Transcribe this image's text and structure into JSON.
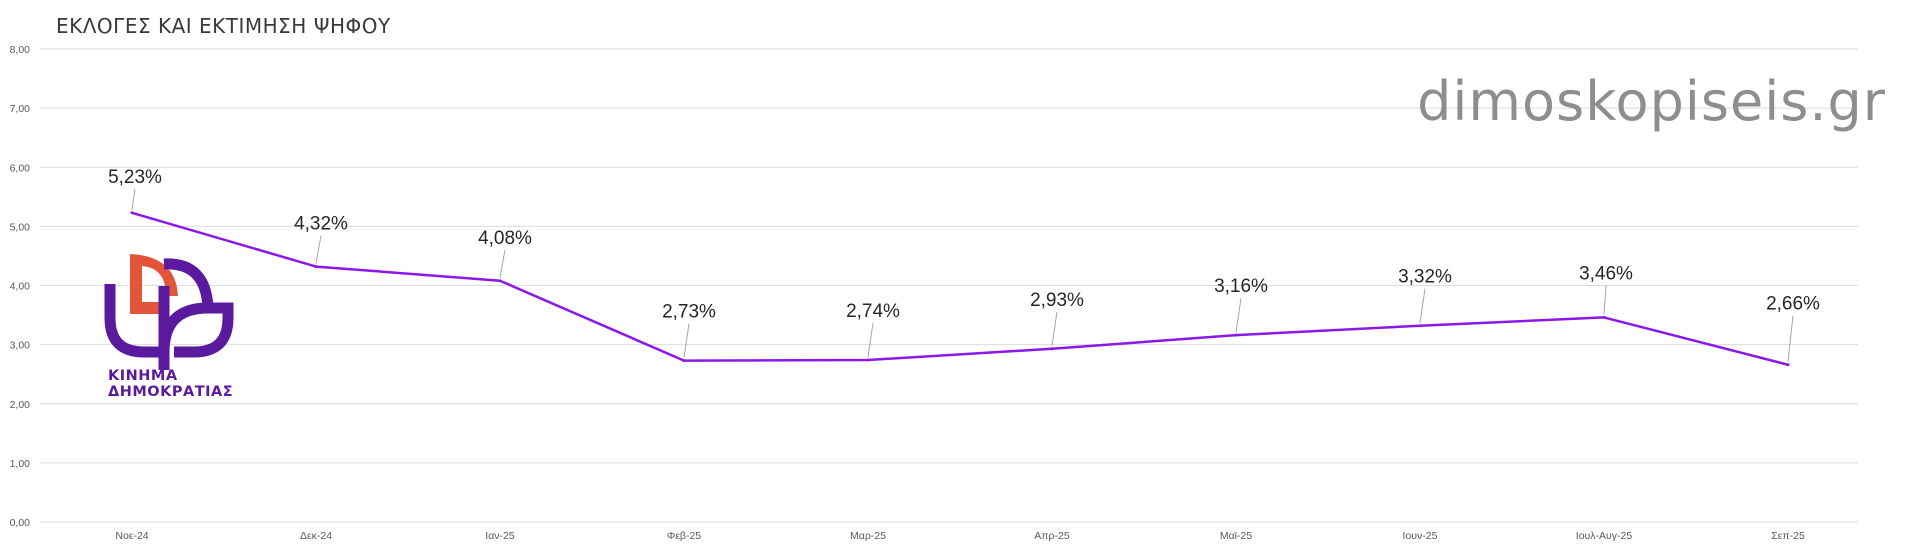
{
  "header": {
    "title": "ΕΚΛΟΓΕΣ ΚΑΙ ΕΚΤΙΜΗΣΗ  ΨΗΦΟΥ"
  },
  "watermark": "dimoskopiseis.gr",
  "logo": {
    "line1": "ΚΙΝΗΜΑ",
    "line2": "ΔΗΜΟΚΡΑΤΙΑΣ",
    "colors": {
      "orange": "#e2553a",
      "purple": "#5b1a9e"
    }
  },
  "chart_data": {
    "type": "line",
    "categories": [
      "Νοε-24",
      "Δεκ-24",
      "Ιαν-25",
      "Φεβ-25",
      "Μαρ-25",
      "Απρ-25",
      "Μαϊ-25",
      "Ιουν-25",
      "Ιουλ-Αυγ-25",
      "Σεπ-25"
    ],
    "series": [
      {
        "values": [
          5.23,
          4.32,
          4.08,
          2.73,
          2.74,
          2.93,
          3.16,
          3.32,
          3.46,
          2.66
        ],
        "labels": [
          "5,23%",
          "4,32%",
          "4,08%",
          "2,73%",
          "2,74%",
          "2,93%",
          "3,16%",
          "3,32%",
          "3,46%",
          "2,66%"
        ],
        "color": "#8a18e8"
      }
    ],
    "yticks": [
      "0,00",
      "1,00",
      "2,00",
      "3,00",
      "4,00",
      "5,00",
      "6,00",
      "7,00",
      "8,00"
    ],
    "ylim": [
      0,
      8
    ],
    "grid": true,
    "gridColor": "#dcdcdc"
  }
}
